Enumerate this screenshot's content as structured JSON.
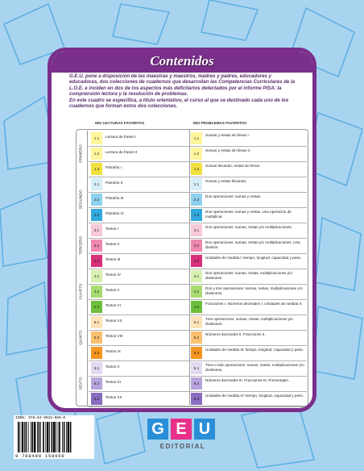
{
  "title": "Contenidos",
  "intro": {
    "p1": "G.E.U. pone a disposición de las maestras y maestros, madres y padres, educadores y educadoras, dos colecciones de cuadernos que desarrollan las Competencias Curriculares de la L.O.E. e inciden en dos de los aspectos más deficitarios detectados por el informe PISA: la comprensión lectora y la resolución de problemas.",
    "p2": "En este cuadro se especifica, a título orientativo, el curso al que va destinado cada uno de los cuadernos que forman estos dos colecciones."
  },
  "headers": {
    "left": "MIS LECTURAS FAVORITAS",
    "right": "MIS PROBLEMAS FAVORITOS"
  },
  "colors": {
    "frame": "#7a2f8a",
    "background": "#a9d4ef"
  },
  "grades": [
    {
      "name": "PRIMERO",
      "rows": [
        {
          "code": "1.1",
          "color": "#fff59a",
          "left": "Lectura de frases I",
          "right": "Sumas y restas sin llevar I."
        },
        {
          "code": "1.2",
          "color": "#fff59a",
          "left": "Lectura de frases II",
          "right": "Sumas y restas sin llevar II."
        },
        {
          "code": "1.3",
          "color": "#f0e040",
          "left": "Párrafos I",
          "right": "Sumas llevando, restas sin llevar."
        }
      ]
    },
    {
      "name": "SEGUNDO",
      "rows": [
        {
          "code": "2.1",
          "color": "#d6eef8",
          "left": "Párrafos II",
          "right": "Sumas y restas llevando."
        },
        {
          "code": "2.2",
          "color": "#8fd0ee",
          "left": "Párrafos III",
          "right": "Dos operaciones: sumas y restas."
        },
        {
          "code": "2.3",
          "color": "#33a8dd",
          "left": "Párrafos IV",
          "right": "Dos operaciones: sumas y restas. Una operación de multiplicar."
        }
      ]
    },
    {
      "name": "TERCERO",
      "rows": [
        {
          "code": "3.1",
          "color": "#f7c8d8",
          "left": "Textos I",
          "right": "Dos operaciones: sumas, restas y/o multiplicaciones."
        },
        {
          "code": "3.2",
          "color": "#ee88b0",
          "left": "Textos II",
          "right": "Dos operaciones: sumas, restas y/o multiplicaciones. Una división."
        },
        {
          "code": "3.3",
          "color": "#d8307a",
          "left": "Textos III",
          "right": "Unidades de medida I: tiempo, longitud, capacidad y peso."
        }
      ]
    },
    {
      "name": "CUARTO",
      "rows": [
        {
          "code": "4.1",
          "color": "#d8efb0",
          "left": "Textos IV",
          "right": "Dos operaciones: sumas, restas, multiplicaciones y/o divisiones."
        },
        {
          "code": "4.2",
          "color": "#a9dc70",
          "left": "Textos V",
          "right": "Dos y tres operaciones: sumas, restas, multiplicaciones y/o divisiones."
        },
        {
          "code": "4.3",
          "color": "#6cbf3a",
          "left": "Textos VI",
          "right": "Fracciones I. Números decimales I. Unidades de medida II."
        }
      ]
    },
    {
      "name": "QUINTO",
      "rows": [
        {
          "code": "5.1",
          "color": "#fde2b8",
          "left": "Textos VII",
          "right": "Tres operaciones: sumas, restas, multiplicaciones y/o divisiones."
        },
        {
          "code": "5.2",
          "color": "#fbc070",
          "left": "Textos VIII",
          "right": "Números decimales II. Fracciones II."
        },
        {
          "code": "5.3",
          "color": "#f39520",
          "left": "Textos IX",
          "right": "Unidades de medida III: tiempo, longitud, capacidad y peso."
        }
      ]
    },
    {
      "name": "SEXTO",
      "rows": [
        {
          "code": "6.1",
          "color": "#e2d8f0",
          "left": "Textos X",
          "right": "Tres o más operaciones: sumas, restas, multiplicaciones y/o divisiones."
        },
        {
          "code": "6.2",
          "color": "#b8a4dc",
          "left": "Textos XI",
          "right": "Números decimales III. Fracciones III. Porcentajes."
        },
        {
          "code": "6.3",
          "color": "#8a6cc0",
          "left": "Textos XII",
          "right": "Unidades de medida IV: tiempo, longitud, capacidad y peso."
        }
      ]
    }
  ],
  "isbn": "ISBN: 978-84-9915-965-0",
  "barcode_number": "9 788499 159650",
  "logo": {
    "letters": [
      "G",
      "E",
      "U"
    ],
    "colors": [
      "#2b8fd8",
      "#e8308a",
      "#2b8fd8"
    ],
    "subtitle": "EDITORIAL"
  }
}
